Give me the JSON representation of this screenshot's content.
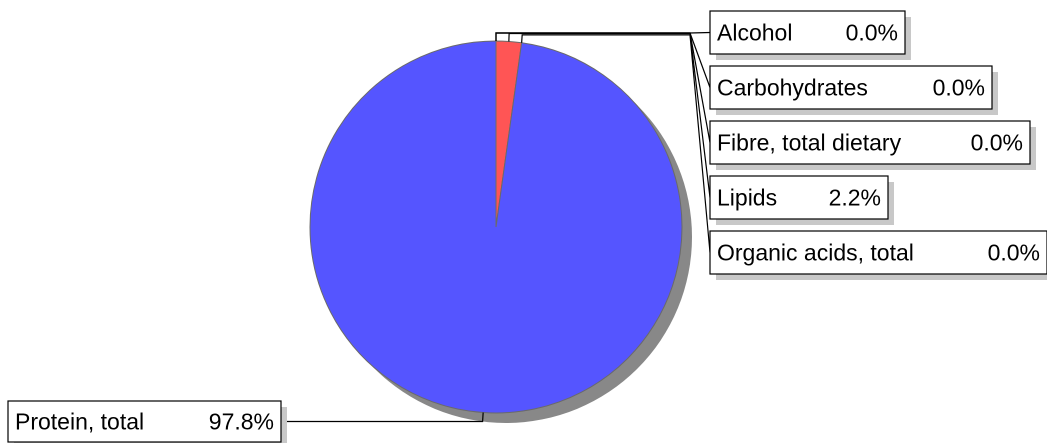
{
  "chart_data": {
    "type": "pie",
    "title": "",
    "legend": "none",
    "colors": {
      "Alcohol": "#ff5555",
      "Carbohydrates": "#ff5555",
      "Fibre, total dietary": "#ff5555",
      "Lipids": "#ff5555",
      "Organic acids, total": "#ff5555",
      "Protein, total": "#5555ff"
    },
    "slices": [
      {
        "label": "Alcohol",
        "value": 0.0,
        "value_text": "0.0%"
      },
      {
        "label": "Carbohydrates",
        "value": 0.0,
        "value_text": "0.0%"
      },
      {
        "label": "Fibre, total dietary",
        "value": 0.0,
        "value_text": "0.0%"
      },
      {
        "label": "Lipids",
        "value": 2.2,
        "value_text": "2.2%"
      },
      {
        "label": "Organic acids, total",
        "value": 0.0,
        "value_text": "0.0%"
      },
      {
        "label": "Protein, total",
        "value": 97.8,
        "value_text": "97.8%"
      }
    ]
  }
}
